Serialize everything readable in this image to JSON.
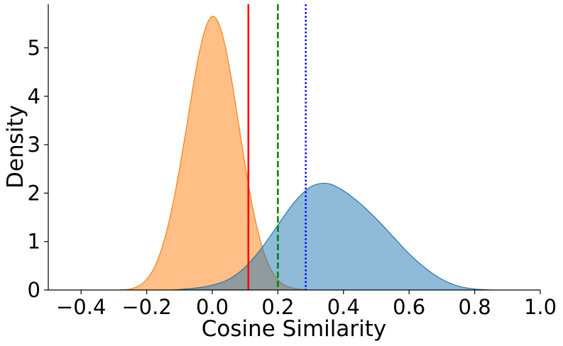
{
  "chart_data": {
    "type": "area",
    "title": "",
    "xlabel": "Cosine Similarity",
    "ylabel": "Density",
    "xlim": [
      -0.5,
      1.0
    ],
    "ylim": [
      0,
      5.9
    ],
    "x_ticks": [
      -0.4,
      -0.2,
      0.0,
      0.2,
      0.4,
      0.6,
      0.8,
      1.0
    ],
    "x_tick_labels": [
      "−0.4",
      "−0.2",
      "0.0",
      "0.2",
      "0.4",
      "0.6",
      "0.8",
      "1.0"
    ],
    "y_ticks": [
      0,
      1,
      2,
      3,
      4,
      5
    ],
    "y_tick_labels": [
      "0",
      "1",
      "2",
      "3",
      "4",
      "5"
    ],
    "grid": false,
    "series": [
      {
        "kind": "density",
        "fill": "#ff7f0e",
        "x": [
          -0.28,
          -0.25,
          -0.22,
          -0.2,
          -0.18,
          -0.16,
          -0.14,
          -0.12,
          -0.1,
          -0.08,
          -0.06,
          -0.04,
          -0.02,
          0.0,
          0.02,
          0.04,
          0.06,
          0.08,
          0.1,
          0.12,
          0.14,
          0.16,
          0.18,
          0.2,
          0.22,
          0.24,
          0.26,
          0.28,
          0.3
        ],
        "y": [
          0.0,
          0.02,
          0.1,
          0.22,
          0.42,
          0.74,
          1.19,
          1.78,
          2.5,
          3.3,
          4.14,
          4.89,
          5.42,
          5.65,
          5.5,
          5.02,
          4.3,
          3.44,
          2.59,
          1.82,
          1.19,
          0.72,
          0.41,
          0.21,
          0.1,
          0.05,
          0.02,
          0.01,
          0.0
        ]
      },
      {
        "kind": "density",
        "fill": "#1f77b4",
        "x": [
          -0.12,
          -0.05,
          0.0,
          0.05,
          0.1,
          0.15,
          0.2,
          0.25,
          0.3,
          0.35,
          0.4,
          0.45,
          0.5,
          0.55,
          0.6,
          0.65,
          0.7,
          0.75,
          0.8,
          0.85
        ],
        "y": [
          0.0,
          0.04,
          0.1,
          0.22,
          0.47,
          0.86,
          1.34,
          1.81,
          2.13,
          2.2,
          2.05,
          1.79,
          1.47,
          1.11,
          0.75,
          0.45,
          0.22,
          0.08,
          0.02,
          0.0
        ]
      }
    ],
    "vlines": [
      {
        "x": 0.11,
        "color": "#ff0000",
        "style": "solid"
      },
      {
        "x": 0.2,
        "color": "#008000",
        "style": "dashed"
      },
      {
        "x": 0.285,
        "color": "#0000ff",
        "style": "dotted"
      }
    ]
  }
}
